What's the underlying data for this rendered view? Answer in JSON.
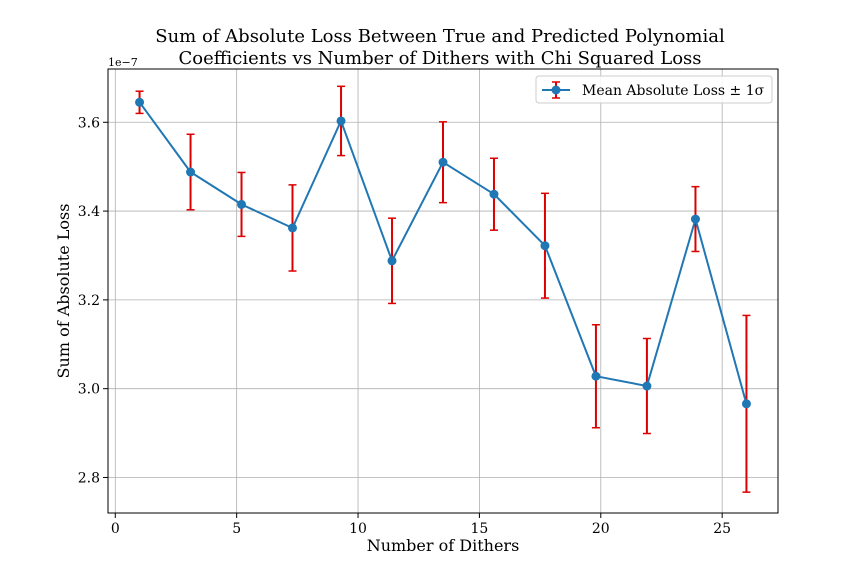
{
  "chart_data": {
    "type": "line",
    "title_line1": "Sum of Absolute Loss Between True and Predicted Polynomial",
    "title_line2": "Coefficients vs Number of Dithers with Chi Squared Loss",
    "xlabel": "Number of Dithers",
    "ylabel": "Sum of Absolute Loss",
    "y_offset_label": "1e−7",
    "xlim": [
      -0.3,
      27.3
    ],
    "ylim": [
      2.72,
      3.72
    ],
    "xticks": [
      0,
      5,
      10,
      15,
      20,
      25
    ],
    "xtick_labels": [
      "0",
      "5",
      "10",
      "15",
      "20",
      "25"
    ],
    "yticks": [
      2.8,
      3.0,
      3.2,
      3.4,
      3.6
    ],
    "ytick_labels": [
      "2.8",
      "3.0",
      "3.2",
      "3.4",
      "3.6"
    ],
    "grid": true,
    "legend_position": "top-right",
    "series": [
      {
        "name": "Mean Absolute Loss ± 1σ",
        "color": "#1f77b4",
        "errorbar_color": "#dd0000",
        "x": [
          1,
          3.1,
          5.2,
          7.3,
          9.3,
          11.4,
          13.5,
          15.6,
          17.7,
          19.8,
          21.9,
          23.9,
          26.0
        ],
        "y": [
          3.645,
          3.488,
          3.415,
          3.362,
          3.603,
          3.288,
          3.51,
          3.438,
          3.322,
          3.028,
          3.006,
          3.382,
          2.966
        ],
        "err": [
          0.025,
          0.085,
          0.072,
          0.097,
          0.078,
          0.096,
          0.091,
          0.081,
          0.118,
          0.116,
          0.107,
          0.073,
          0.199
        ]
      }
    ]
  }
}
